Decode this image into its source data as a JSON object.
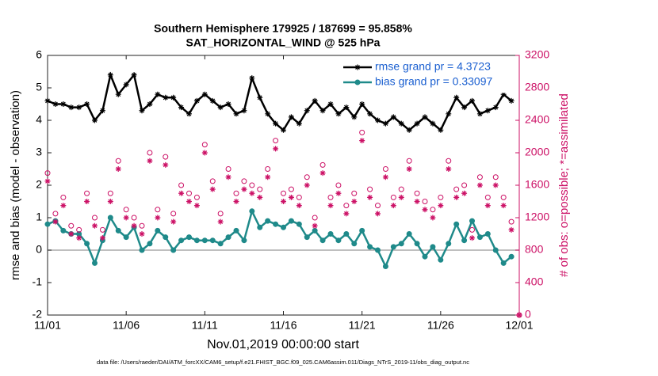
{
  "chart_data": {
    "type": "line",
    "title": "Southern Hemisphere 179925 / 187699 = 95.858%",
    "subtitle": "SAT_HORIZONTAL_WIND @ 525 hPa",
    "ylabel": "rmse and bias (model - observation)",
    "y2label": "# of obs: o=possible; *=assimilated",
    "xlabel": "Nov.01,2019 00:00:00 start",
    "footnote": "data file: /Users/raeder/DAI/ATM_forcXX/CAM6_setup/f.e21.FHIST_BGC.f09_025.CAM6assim.011/Diags_NTrS_2019-11/obs_diag_output.nc",
    "xlim": [
      0,
      30
    ],
    "xticks": [
      {
        "value": 0,
        "label": "11/01"
      },
      {
        "value": 5,
        "label": "11/06"
      },
      {
        "value": 10,
        "label": "11/11"
      },
      {
        "value": 15,
        "label": "11/16"
      },
      {
        "value": 20,
        "label": "11/21"
      },
      {
        "value": 25,
        "label": "11/26"
      },
      {
        "value": 30,
        "label": "12/01"
      }
    ],
    "ylim": [
      -2,
      6
    ],
    "yticks": [
      -2,
      -1,
      0,
      1,
      2,
      3,
      4,
      5,
      6
    ],
    "y2lim": [
      0,
      3200
    ],
    "y2ticks": [
      0,
      400,
      800,
      1200,
      1600,
      2000,
      2400,
      2800,
      3200
    ],
    "y2color": "#cc1166",
    "hline": 0,
    "legend": "northeast",
    "legend_text_color": "#1a5fd0",
    "x": [
      0,
      0.5,
      1,
      1.5,
      2,
      2.5,
      3,
      3.5,
      4,
      4.5,
      5,
      5.5,
      6,
      6.5,
      7,
      7.5,
      8,
      8.5,
      9,
      9.5,
      10,
      10.5,
      11,
      11.5,
      12,
      12.5,
      13,
      13.5,
      14,
      14.5,
      15,
      15.5,
      16,
      16.5,
      17,
      17.5,
      18,
      18.5,
      19,
      19.5,
      20,
      20.5,
      21,
      21.5,
      22,
      22.5,
      23,
      23.5,
      24,
      24.5,
      25,
      25.5,
      26,
      26.5,
      27,
      27.5,
      28,
      28.5,
      29,
      29.5,
      30
    ],
    "series": [
      {
        "name": "rmse grand pr = 4.3723",
        "color": "#000000",
        "marker": "asterisk",
        "line": true,
        "in_legend": true,
        "values": [
          4.6,
          4.5,
          4.5,
          4.4,
          4.4,
          4.5,
          4.0,
          4.3,
          5.4,
          4.8,
          5.1,
          5.4,
          4.3,
          4.5,
          4.8,
          4.7,
          4.7,
          4.4,
          4.2,
          4.6,
          4.8,
          4.6,
          4.4,
          4.5,
          4.2,
          4.3,
          5.3,
          4.7,
          4.2,
          3.9,
          3.7,
          4.1,
          3.9,
          4.3,
          4.6,
          4.3,
          4.5,
          4.2,
          4.4,
          4.1,
          4.5,
          4.2,
          4.0,
          3.9,
          4.1,
          3.9,
          3.7,
          3.9,
          4.1,
          3.9,
          3.7,
          4.2,
          4.7,
          4.4,
          4.6,
          4.2,
          4.3,
          4.4,
          4.8,
          4.6,
          null
        ]
      },
      {
        "name": "bias grand pr = 0.33097",
        "color": "#1f8a8a",
        "marker": "circle",
        "line": true,
        "in_legend": true,
        "values": [
          0.8,
          0.9,
          0.6,
          0.5,
          0.5,
          0.2,
          -0.4,
          0.3,
          1.0,
          0.6,
          0.4,
          0.7,
          0.0,
          0.2,
          0.6,
          0.4,
          0.0,
          0.3,
          0.4,
          0.3,
          0.3,
          0.3,
          0.2,
          0.4,
          0.6,
          0.3,
          1.2,
          0.7,
          0.9,
          0.8,
          0.7,
          0.9,
          0.8,
          0.4,
          0.6,
          0.3,
          0.5,
          0.3,
          0.5,
          0.2,
          0.6,
          0.1,
          0.0,
          -0.5,
          0.1,
          0.2,
          0.5,
          0.2,
          -0.2,
          0.1,
          -0.3,
          0.2,
          0.8,
          0.3,
          0.9,
          0.4,
          0.5,
          0.0,
          -0.4,
          -0.2,
          null
        ]
      },
      {
        "color": "#cc1166",
        "marker": "open-circle",
        "line": false,
        "axis": "y2",
        "in_legend": false,
        "values": [
          1750,
          1250,
          1450,
          1100,
          1050,
          1500,
          1200,
          1050,
          1500,
          1900,
          1300,
          1200,
          1100,
          2000,
          1300,
          1950,
          1250,
          1600,
          1500,
          1450,
          2100,
          1650,
          1250,
          1800,
          1500,
          1650,
          1600,
          1550,
          1800,
          2150,
          1500,
          1550,
          1450,
          1700,
          1200,
          1850,
          1450,
          1600,
          1350,
          1500,
          2250,
          1550,
          1350,
          1800,
          1450,
          1550,
          1900,
          1500,
          1400,
          1300,
          1450,
          1900,
          1550,
          1600,
          1050,
          1700,
          1450,
          1700,
          1450,
          1150,
          0
        ]
      },
      {
        "color": "#cc1166",
        "marker": "asterisk",
        "line": false,
        "axis": "y2",
        "in_legend": false,
        "values": [
          1650,
          1150,
          1350,
          1000,
          950,
          1400,
          1100,
          950,
          1400,
          1800,
          1200,
          1100,
          1000,
          1900,
          1200,
          1850,
          1150,
          1500,
          1400,
          1350,
          2000,
          1550,
          1150,
          1700,
          1400,
          1550,
          1500,
          1450,
          1700,
          2050,
          1400,
          1450,
          1350,
          1600,
          1100,
          1750,
          1350,
          1500,
          1250,
          1400,
          2150,
          1450,
          1250,
          1700,
          1350,
          1450,
          1800,
          1400,
          1300,
          1200,
          1350,
          1800,
          1450,
          1500,
          950,
          1600,
          1350,
          1600,
          1350,
          1050,
          0
        ]
      }
    ]
  }
}
